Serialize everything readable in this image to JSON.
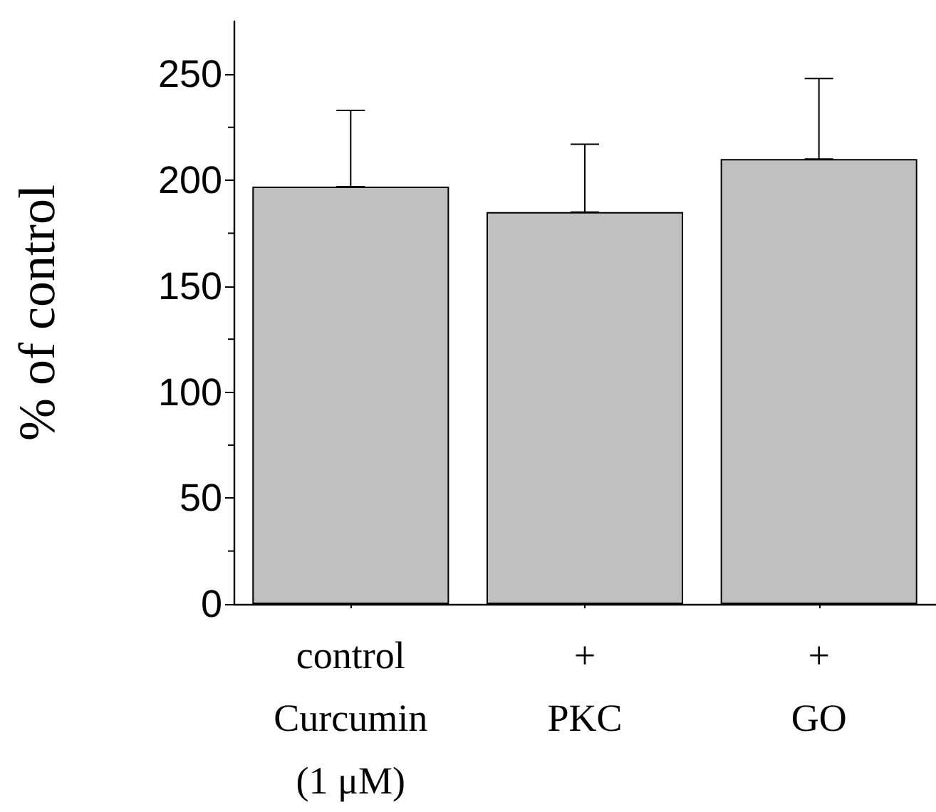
{
  "chart_data": {
    "type": "bar",
    "ylabel": "% of control",
    "categories": [
      "control\nCurcumin\n(1 μM)",
      "+\nPKC",
      "+\nGO"
    ],
    "values": [
      197,
      185,
      210
    ],
    "errors": [
      [
        197,
        233
      ],
      [
        185,
        217
      ],
      [
        210,
        248
      ]
    ],
    "color": "#c0c0c0",
    "ylim": [
      0,
      275
    ],
    "yticks": [
      0,
      50,
      100,
      150,
      200,
      250
    ],
    "grid": false
  }
}
